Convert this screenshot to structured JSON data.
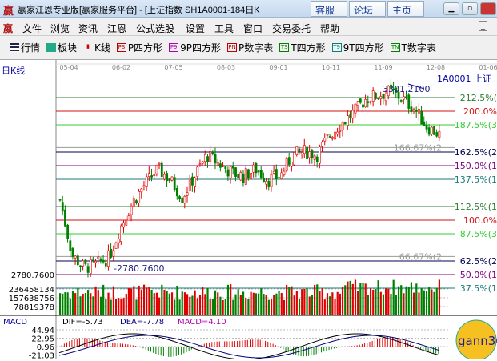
{
  "window": {
    "title": "嬴家江恩专业版[嬴家服务平台] - [上证指数  SH1A0001-184日K",
    "buttons": [
      "客服",
      "论坛",
      "主页"
    ],
    "logo": "嬴"
  },
  "menu": [
    "文件",
    "浏览",
    "资讯",
    "江恩",
    "公式选股",
    "设置",
    "工具",
    "窗口",
    "交易委托",
    "帮助"
  ],
  "toolbar": [
    {
      "icon": "grid-icon",
      "label": "行情"
    },
    {
      "icon": "blocks-icon",
      "label": "板块"
    },
    {
      "icon": "candle-icon",
      "label": "K线"
    },
    {
      "icon": "PS",
      "label": "P四方形",
      "color": "#c00000"
    },
    {
      "icon": "P9",
      "label": "9P四方形",
      "color": "#b000b0"
    },
    {
      "icon": "PN",
      "label": "P数字表",
      "color": "#c00000"
    },
    {
      "icon": "TS",
      "label": "T四方形",
      "color": "#008000"
    },
    {
      "icon": "T9",
      "label": "9T四方形",
      "color": "#008080"
    },
    {
      "icon": "TN",
      "label": "T数字表",
      "color": "#008000"
    }
  ],
  "chart": {
    "period_label": "日K线",
    "symbol_label": "1A0001 上证",
    "dates": [
      "05-04",
      "06-02",
      "07-05",
      "08-03",
      "09-01",
      "10-11",
      "11-09",
      "12-08",
      "01-06"
    ],
    "high_label": "3301.2100",
    "low_label": "2780.7600",
    "low_axis_label": "2780.7600",
    "levels": [
      {
        "label": "212.5%(",
        "pct": 212.5,
        "color": "#2e7d32"
      },
      {
        "label": "200.0%",
        "pct": 200,
        "color": "#d01010"
      },
      {
        "label": "187.5%(3",
        "pct": 187.5,
        "color": "#33cc33"
      },
      {
        "label": "166.67%(2",
        "pct": 166.67,
        "color": "#999999"
      },
      {
        "label": "162.5%(2",
        "pct": 162.5,
        "color": "#000050"
      },
      {
        "label": "150.0%(1",
        "pct": 150,
        "color": "#800080"
      },
      {
        "label": "137.5%(1",
        "pct": 137.5,
        "color": "#1a7a7a"
      },
      {
        "label": "112.5%(1",
        "pct": 112.5,
        "color": "#2e7d32"
      },
      {
        "label": "100.0%",
        "pct": 100,
        "color": "#d01010"
      },
      {
        "label": "87.5%(3",
        "pct": 87.5,
        "color": "#33cc33"
      },
      {
        "label": "66.67%(2",
        "pct": 66.67,
        "color": "#999999"
      },
      {
        "label": "62.5%(2",
        "pct": 62.5,
        "color": "#000050"
      },
      {
        "label": "50.0%(1",
        "pct": 50,
        "color": "#800080"
      },
      {
        "label": "37.5%(1",
        "pct": 37.5,
        "color": "#1a7a7a"
      }
    ],
    "price_trend": [
      2993,
      2835,
      2800,
      2810,
      2830,
      2920,
      2990,
      3040,
      3080,
      3050,
      3000,
      3060,
      3120,
      3095,
      3070,
      3060,
      3080,
      3050,
      3060,
      3120,
      3130,
      3120,
      3175,
      3210,
      3240,
      3280,
      3290,
      3300,
      3280,
      3250,
      3200,
      3178
    ],
    "volume_labels": [
      "236458134",
      "157638756",
      "78819378"
    ],
    "macd": {
      "title": "MACD",
      "dif": "DIF=-5.73",
      "dea": "DEA=-7.78",
      "macd": "MACD=4.10",
      "axis": [
        "44.94",
        "22.95",
        "0.96",
        "-21.03"
      ]
    },
    "colors": {
      "up": "#e00000",
      "down": "#008000"
    },
    "watermark": "gann360"
  }
}
